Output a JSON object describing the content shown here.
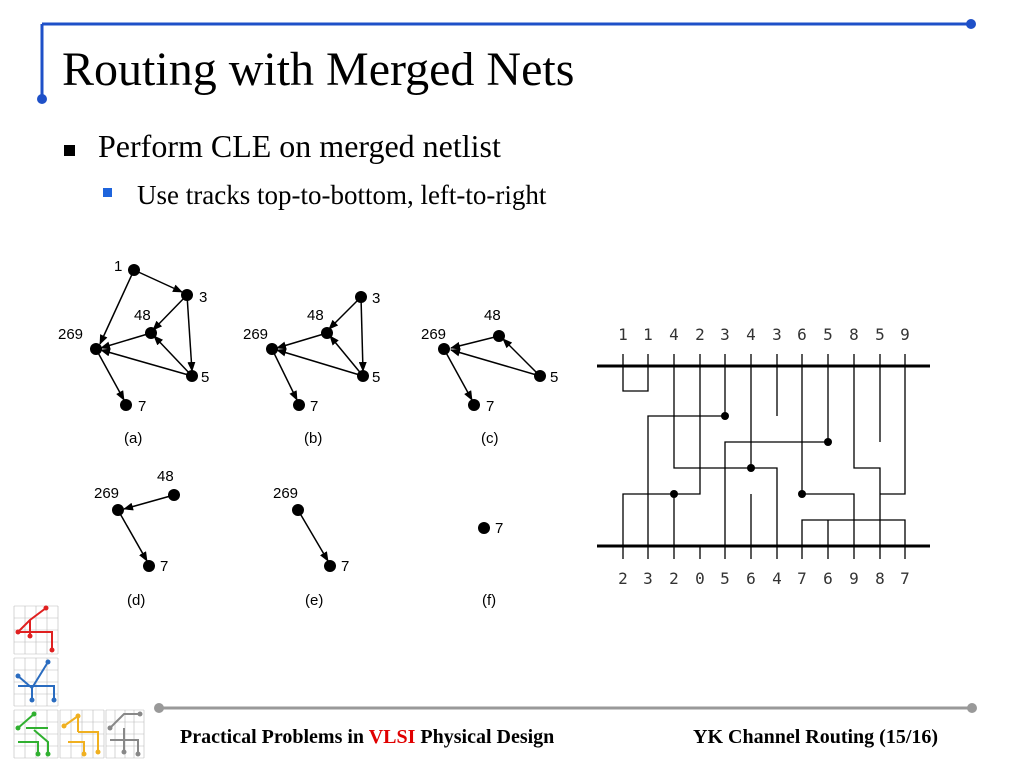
{
  "title": "Routing with Merged Nets",
  "bullets": [
    {
      "text": "Perform CLE on merged netlist",
      "sub": [
        "Use tracks top-to-bottom, left-to-right"
      ]
    }
  ],
  "graphs": [
    {
      "caption": "(a)",
      "nodes": [
        "1",
        "3",
        "48",
        "269",
        "5",
        "7"
      ]
    },
    {
      "caption": "(b)",
      "nodes": [
        "3",
        "48",
        "269",
        "5",
        "7"
      ]
    },
    {
      "caption": "(c)",
      "nodes": [
        "48",
        "269",
        "5",
        "7"
      ]
    },
    {
      "caption": "(d)",
      "nodes": [
        "48",
        "269",
        "7"
      ]
    },
    {
      "caption": "(e)",
      "nodes": [
        "269",
        "7"
      ]
    },
    {
      "caption": "(f)",
      "nodes": [
        "7"
      ]
    }
  ],
  "channel": {
    "top_pins": [
      "1",
      "1",
      "4",
      "2",
      "3",
      "4",
      "3",
      "6",
      "5",
      "8",
      "5",
      "9"
    ],
    "bottom_pins": [
      "2",
      "3",
      "2",
      "0",
      "5",
      "6",
      "4",
      "7",
      "6",
      "9",
      "8",
      "7"
    ]
  },
  "footer": {
    "left_prefix": "Practical Problems in",
    "left_highlight": "VLSI",
    "left_suffix": "Physical Design",
    "right": "YK Channel Routing (15/16)"
  },
  "colors": {
    "accent_blue": "#1e50c8",
    "footer_line": "#999999",
    "highlight_red": "#e00000"
  }
}
